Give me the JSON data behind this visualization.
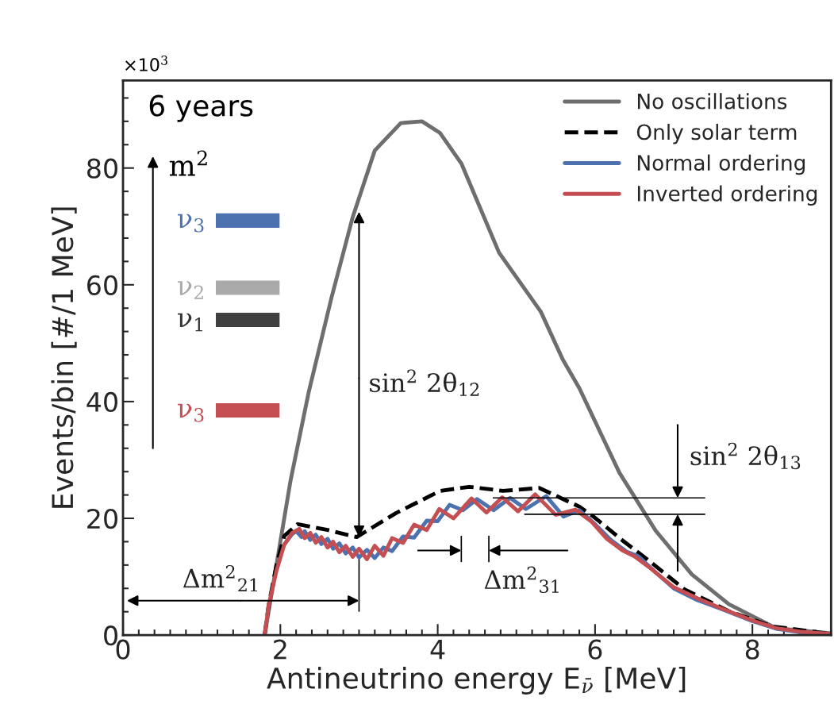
{
  "chart_data": {
    "type": "line",
    "xlabel": "Antineutrino energy E$_{ν̄}$ [MeV]",
    "ylabel": "Events/bin [#/1 MeV]",
    "xlim": [
      0,
      9
    ],
    "xticks": [
      0,
      2,
      4,
      6,
      8
    ],
    "ylim": [
      0,
      95
    ],
    "yticks": [
      0,
      20,
      40,
      60,
      80
    ],
    "grid": false,
    "legend": "top right",
    "annotations": [
      "6 years",
      "×10$^{3}$",
      "m$^{2}$",
      "ν$_{3}$",
      "ν$_{2}$",
      "ν$_{1}$",
      "ν$_{3}$",
      {
        "text": "sin$^{2}$ 2θ$_{12}$",
        "x": 3.0,
        "y": 72.5
      },
      "Δm$^{2}$$_{21}$",
      "Δm$^{2}$$_{31}$",
      "sin$^{2}$ 2θ$_{13}$"
    ],
    "series": [
      {
        "name": "No oscillations",
        "color": "#6e6e6e",
        "line_style": "solid",
        "x": [
          1.8,
          1.95,
          2.13,
          2.36,
          2.65,
          2.92,
          3.2,
          3.53,
          3.8,
          4.03,
          4.3,
          4.78,
          5.31,
          5.59,
          5.8,
          6.31,
          6.77,
          7.23,
          7.7,
          8.3,
          9.0
        ],
        "values": [
          0,
          12,
          26.5,
          41.6,
          57.8,
          71.6,
          83,
          87.7,
          88,
          86,
          80.8,
          65.5,
          55.4,
          47.2,
          42.3,
          27.8,
          17.9,
          10.4,
          5.3,
          1.2,
          0.3
        ]
      },
      {
        "name": "Only solar term",
        "color": "#000000",
        "line_style": "dashed",
        "x": [
          1.8,
          1.85,
          1.95,
          2.05,
          2.22,
          2.6,
          2.97,
          3.47,
          4.03,
          4.4,
          4.83,
          5.29,
          5.8,
          5.98,
          6.35,
          6.68,
          7.14,
          7.7,
          8.25,
          9.0
        ],
        "values": [
          0,
          5,
          12,
          17,
          19,
          18,
          16.8,
          20.9,
          24.7,
          25.4,
          24.7,
          25.2,
          22,
          20.3,
          16.2,
          12.8,
          7.8,
          4.1,
          1.5,
          0.2
        ]
      },
      {
        "name": "Normal ordering",
        "color": "#4c72b0",
        "line_style": "solid",
        "x": [
          2.05,
          2.15,
          2.2,
          2.27,
          2.31,
          2.38,
          2.45,
          2.52,
          2.6,
          2.67,
          2.75,
          2.83,
          2.92,
          3.0,
          3.1,
          3.2,
          3.31,
          3.42,
          3.56,
          3.7,
          3.86,
          4.0,
          4.15,
          4.32,
          4.5,
          4.71,
          4.92,
          5.12,
          5.38,
          5.6,
          5.8,
          6.0,
          6.2,
          6.4,
          6.55,
          6.75,
          7.0,
          7.3,
          7.6,
          8.0,
          8.3,
          8.6,
          9.0
        ],
        "values": [
          15.5,
          17.3,
          17.8,
          16.8,
          17.8,
          16.3,
          17.2,
          15.6,
          16.5,
          14.8,
          15.7,
          14.0,
          15.0,
          13.3,
          14.6,
          13.2,
          15.0,
          14.4,
          16.9,
          16.7,
          19.6,
          19.5,
          22.3,
          21.4,
          23.3,
          21.4,
          23.5,
          21.6,
          23.8,
          20.3,
          21.4,
          19.0,
          16.3,
          14.3,
          13.5,
          11.0,
          8.0,
          6.0,
          4.5,
          2.4,
          1.1,
          0.5,
          0.2
        ]
      },
      {
        "name": "Inverted ordering",
        "color": "#c44e52",
        "line_style": "solid",
        "x": [
          1.8,
          1.85,
          1.95,
          2.05,
          2.15,
          2.24,
          2.31,
          2.38,
          2.45,
          2.52,
          2.6,
          2.67,
          2.75,
          2.83,
          2.92,
          3.0,
          3.1,
          3.2,
          3.31,
          3.42,
          3.56,
          3.7,
          3.86,
          4.02,
          4.2,
          4.43,
          4.62,
          4.82,
          5.02,
          5.24,
          5.5,
          5.75,
          5.95,
          6.15,
          6.35,
          6.5,
          6.7,
          7.0,
          7.3,
          7.6,
          8.0,
          8.3,
          8.6,
          9.0
        ],
        "values": [
          0,
          5,
          11,
          15.5,
          17.5,
          18.2,
          16.6,
          17.5,
          15.8,
          16.8,
          15.0,
          16.0,
          14.2,
          15.3,
          13.4,
          14.8,
          13.0,
          15.3,
          13.6,
          16.6,
          15.8,
          18.9,
          18.0,
          21.6,
          20.0,
          23.4,
          21.0,
          23.6,
          21.2,
          24.1,
          20.6,
          21.5,
          19.5,
          16.5,
          14.5,
          13.5,
          11.5,
          8.2,
          6.3,
          4.6,
          2.5,
          1.2,
          0.6,
          0.2
        ]
      }
    ]
  }
}
